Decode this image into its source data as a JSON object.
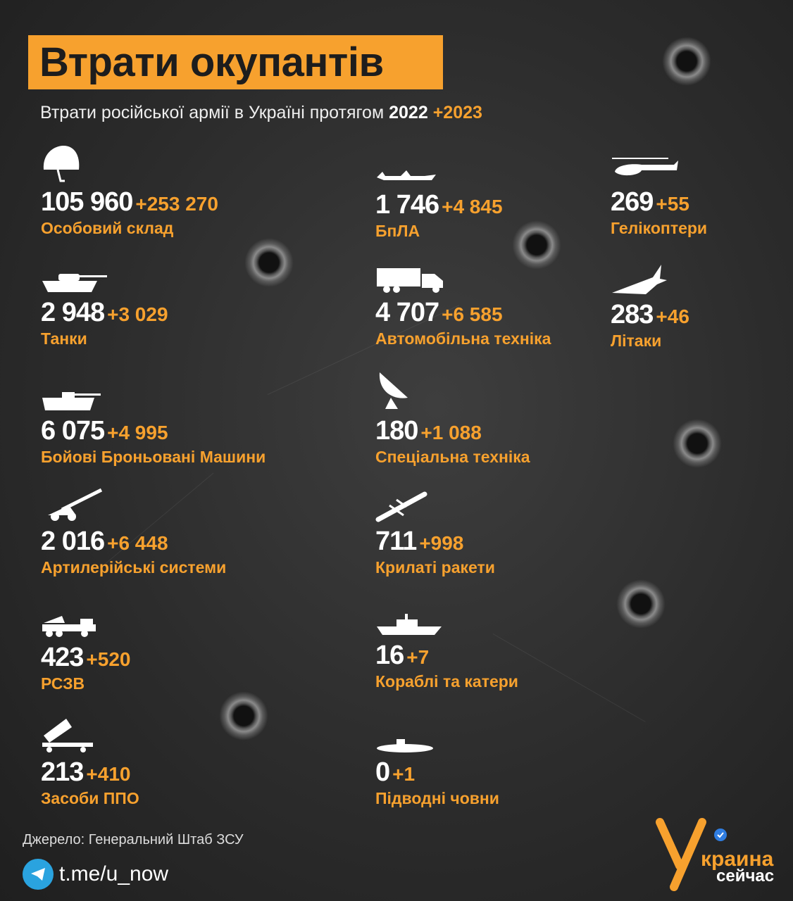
{
  "title": "Втрати окупантів",
  "subtitle": {
    "text": "Втрати російської армії в Україні протягом",
    "year1": "2022",
    "year2": "+2023"
  },
  "colors": {
    "accent": "#f7a12e",
    "background": "#2c2c2c",
    "text": "#ffffff"
  },
  "items": [
    {
      "icon": "helmet-icon",
      "value": "105 960",
      "plus": "+253 270",
      "label": "Особовий склад"
    },
    {
      "icon": "tank-icon",
      "value": "2 948",
      "plus": "+3 029",
      "label": "Танки"
    },
    {
      "icon": "apc-icon",
      "value": "6 075",
      "plus": "+4 995",
      "label": "Бойові Броньовані Машини"
    },
    {
      "icon": "artillery-icon",
      "value": "2 016",
      "plus": "+6 448",
      "label": "Артилерійські системи"
    },
    {
      "icon": "mlrs-icon",
      "value": "423",
      "plus": "+520",
      "label": "РСЗВ"
    },
    {
      "icon": "air-defense-icon",
      "value": "213",
      "plus": "+410",
      "label": "Засоби ППО"
    },
    {
      "icon": "drone-icon",
      "value": "1 746",
      "plus": "+4 845",
      "label": "БпЛА"
    },
    {
      "icon": "truck-icon",
      "value": "4 707",
      "plus": "+6 585",
      "label": "Автомобільна техніка"
    },
    {
      "icon": "radar-icon",
      "value": "180",
      "plus": "+1 088",
      "label": "Спеціальна техніка"
    },
    {
      "icon": "missile-icon",
      "value": "711",
      "plus": "+998",
      "label": "Крилаті ракети"
    },
    {
      "icon": "warship-icon",
      "value": "16",
      "plus": "+7",
      "label": "Кораблі та катери"
    },
    {
      "icon": "submarine-icon",
      "value": "0",
      "plus": "+1",
      "label": "Підводні човни"
    },
    {
      "icon": "helicopter-icon",
      "value": "269",
      "plus": "+55",
      "label": "Гелікоптери"
    },
    {
      "icon": "jet-icon",
      "value": "283",
      "plus": "+46",
      "label": "Літаки"
    }
  ],
  "footer": {
    "source": "Джерело: Генеральний Штаб ЗСУ",
    "telegram": "t.me/u_now",
    "logo_text": "Украина сейчас"
  }
}
